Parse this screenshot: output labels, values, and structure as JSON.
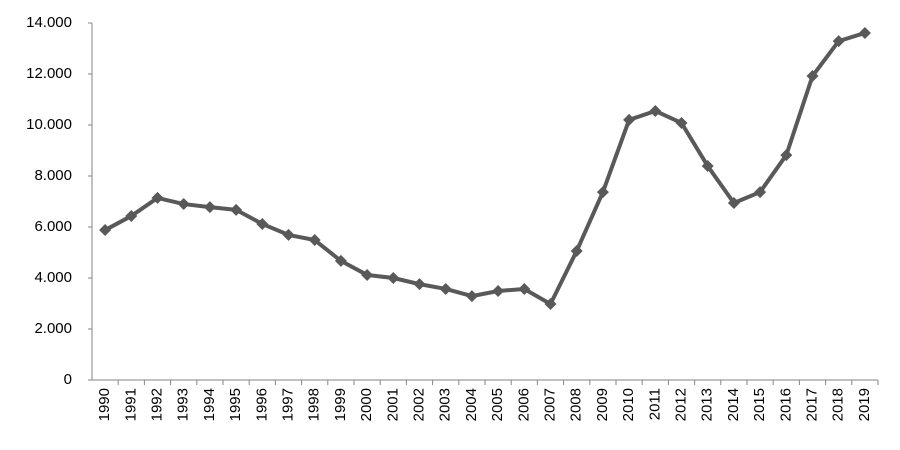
{
  "chart_data": {
    "type": "line",
    "categories": [
      "1990",
      "1991",
      "1992",
      "1993",
      "1994",
      "1995",
      "1996",
      "1997",
      "1998",
      "1999",
      "2000",
      "2001",
      "2002",
      "2003",
      "2004",
      "2005",
      "2006",
      "2007",
      "2008",
      "2009",
      "2010",
      "2011",
      "2012",
      "2013",
      "2014",
      "2015",
      "2016",
      "2017",
      "2018",
      "2019"
    ],
    "values": [
      5880,
      6430,
      7140,
      6900,
      6780,
      6670,
      6120,
      5690,
      5490,
      4670,
      4120,
      4000,
      3760,
      3570,
      3290,
      3490,
      3570,
      2980,
      5060,
      7370,
      10200,
      10550,
      10080,
      8390,
      6940,
      7370,
      8820,
      11920,
      13290,
      13610
    ],
    "color": "#595959",
    "marker": "diamond",
    "ylim": [
      0,
      14000
    ],
    "yticks": [
      0,
      {
        "value": 2000,
        "label": "2.000"
      },
      {
        "value": 4000,
        "label": "4.000"
      },
      {
        "value": 6000,
        "label": "6.000"
      },
      {
        "value": 8000,
        "label": "8.000"
      },
      {
        "value": 10000,
        "label": "10.000"
      },
      {
        "value": 12000,
        "label": "12.000"
      },
      {
        "value": 14000,
        "label": "14.000"
      }
    ],
    "grid": false
  }
}
